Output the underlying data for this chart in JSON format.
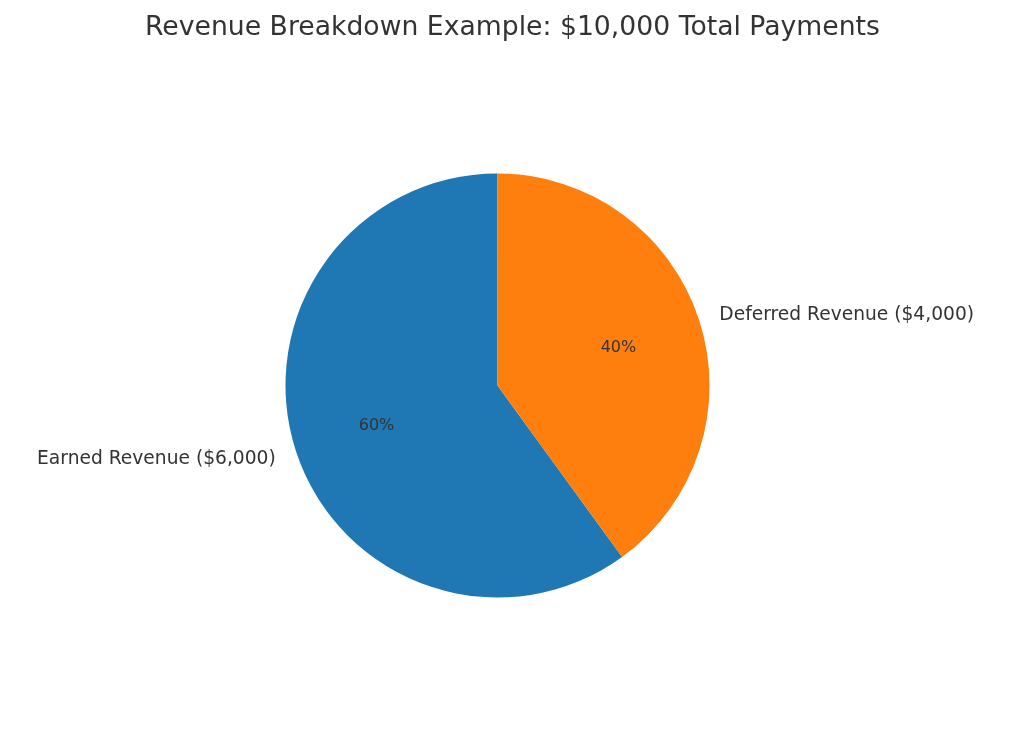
{
  "chart_data": {
    "type": "pie",
    "title": "Revenue Breakdown Example: $10,000 Total Payments",
    "categories": [
      "Earned Revenue ($6,000)",
      "Deferred Revenue ($4,000)"
    ],
    "values": [
      60,
      40
    ],
    "value_labels": [
      "60%",
      "40%"
    ],
    "colors": [
      "#1f77b4",
      "#ff7f0e"
    ]
  }
}
